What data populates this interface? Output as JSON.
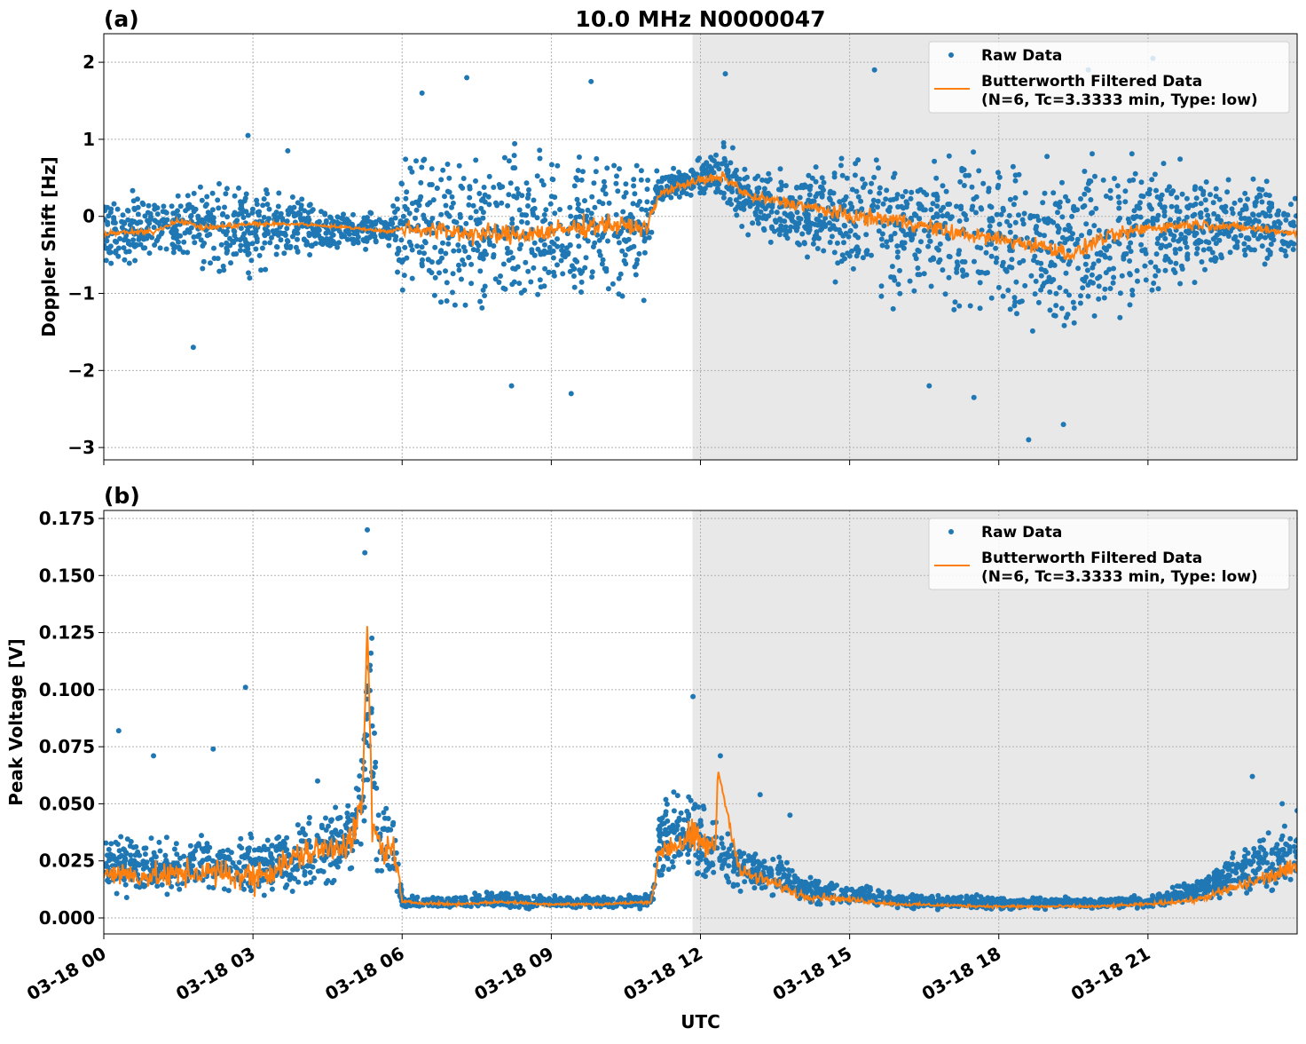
{
  "chart_data": [
    {
      "type": "scatter",
      "panel_label": "(a)",
      "title": "10.0 MHz N0000047",
      "xlabel": "",
      "ylabel": "Doppler Shift [Hz]",
      "xlim_hours": [
        0,
        24
      ],
      "ylim": [
        -3.16,
        2.37
      ],
      "yticks": [
        2,
        1,
        0,
        -1,
        -2,
        -3
      ],
      "ytick_labels": [
        "2",
        "1",
        "0",
        "−1",
        "−2",
        "−3"
      ],
      "shaded_region_hours": [
        11.84,
        24
      ],
      "grid": true,
      "legend": {
        "placement": "top-right",
        "entries": [
          "Raw Data",
          "Butterworth Filtered Data",
          "(N=6, Tc=3.3333 min, Type: low)"
        ]
      },
      "series": [
        {
          "name": "Raw Data",
          "color": "#1f77b4",
          "kind": "points",
          "t": [
            0,
            1,
            2,
            3,
            4,
            5,
            5.8,
            5.95,
            7,
            8,
            9,
            10,
            10.9,
            11.1,
            11.8,
            12.5,
            13,
            14,
            15,
            16,
            17,
            18,
            19,
            19.5,
            20,
            21,
            22,
            23,
            24
          ],
          "raw_lo": [
            -0.8,
            -0.7,
            -0.8,
            -0.9,
            -0.6,
            -0.5,
            -0.4,
            -1.3,
            -1.4,
            -1.5,
            -1.4,
            -1.3,
            -1.2,
            0.1,
            0.2,
            0.1,
            -0.3,
            -0.6,
            -1.0,
            -1.3,
            -1.4,
            -1.5,
            -1.7,
            -1.8,
            -1.5,
            -1.2,
            -1.0,
            -0.8,
            -0.7
          ],
          "raw_hi": [
            0.4,
            0.4,
            0.5,
            0.6,
            0.3,
            0.1,
            0.1,
            0.9,
            1.0,
            1.0,
            1.0,
            1.0,
            0.9,
            0.6,
            0.7,
            1.0,
            0.7,
            0.7,
            0.9,
            1.0,
            1.0,
            1.0,
            1.0,
            1.0,
            1.0,
            0.9,
            0.8,
            0.6,
            0.4
          ],
          "outliers": [
            [
              1.8,
              -1.7
            ],
            [
              2.9,
              1.05
            ],
            [
              3.7,
              0.85
            ],
            [
              6.4,
              1.6
            ],
            [
              7.3,
              1.8
            ],
            [
              8.2,
              -2.2
            ],
            [
              9.4,
              -2.3
            ],
            [
              9.8,
              1.75
            ],
            [
              12.5,
              1.85
            ],
            [
              15.5,
              1.9
            ],
            [
              16.6,
              -2.2
            ],
            [
              17.5,
              -2.35
            ],
            [
              18.6,
              -2.9
            ],
            [
              19.3,
              -2.7
            ],
            [
              21.1,
              2.05
            ],
            [
              19.8,
              1.9
            ]
          ]
        },
        {
          "name": "Butterworth Filtered Data",
          "color": "#ff7f0e",
          "kind": "line",
          "t": [
            0,
            1,
            1.5,
            2,
            3,
            4,
            5,
            5.8,
            6,
            7,
            8,
            9,
            10,
            10.9,
            11.2,
            11.8,
            12.5,
            13,
            14,
            15,
            16,
            17,
            18,
            19,
            19.5,
            20,
            21,
            22,
            23,
            24
          ],
          "values": [
            -0.22,
            -0.2,
            -0.05,
            -0.15,
            -0.1,
            -0.1,
            -0.15,
            -0.2,
            -0.15,
            -0.2,
            -0.25,
            -0.2,
            -0.1,
            -0.15,
            0.3,
            0.45,
            0.5,
            0.25,
            0.15,
            0.0,
            -0.05,
            -0.2,
            -0.3,
            -0.4,
            -0.5,
            -0.3,
            -0.15,
            -0.1,
            -0.15,
            -0.22
          ],
          "noise": [
            0.05,
            0.05,
            0.05,
            0.05,
            0.05,
            0.03,
            0.03,
            0.03,
            0.15,
            0.2,
            0.2,
            0.2,
            0.2,
            0.15,
            0.08,
            0.08,
            0.12,
            0.1,
            0.12,
            0.15,
            0.15,
            0.15,
            0.15,
            0.15,
            0.15,
            0.15,
            0.12,
            0.1,
            0.08,
            0.06
          ]
        }
      ]
    },
    {
      "type": "scatter",
      "panel_label": "(b)",
      "xlabel": "UTC",
      "ylabel": "Peak Voltage [V]",
      "xlim_hours": [
        0,
        24
      ],
      "ylim": [
        -0.007,
        0.1785
      ],
      "yticks": [
        0.0,
        0.025,
        0.05,
        0.075,
        0.1,
        0.125,
        0.15,
        0.175
      ],
      "ytick_labels": [
        "0.000",
        "0.025",
        "0.050",
        "0.075",
        "0.100",
        "0.125",
        "0.150",
        "0.175"
      ],
      "xticks_hours": [
        0,
        3,
        6,
        9,
        12,
        15,
        18,
        21
      ],
      "xtick_labels": [
        "03-18 00",
        "03-18 03",
        "03-18 06",
        "03-18 09",
        "03-18 12",
        "03-18 15",
        "03-18 18",
        "03-18 21"
      ],
      "shaded_region_hours": [
        11.84,
        24
      ],
      "grid": true,
      "legend": {
        "placement": "top-right",
        "entries": [
          "Raw Data",
          "Butterworth Filtered Data",
          "(N=6, Tc=3.3333 min, Type: low)"
        ]
      },
      "series": [
        {
          "name": "Raw Data",
          "color": "#1f77b4",
          "kind": "points",
          "t": [
            0,
            1,
            2,
            3,
            3.5,
            4,
            4.5,
            5,
            5.2,
            5.35,
            5.5,
            5.85,
            6,
            7,
            8,
            9,
            10,
            11,
            11.2,
            11.8,
            12.3,
            12.8,
            13.5,
            14,
            15,
            16,
            18,
            20,
            21,
            22,
            23,
            24
          ],
          "raw_lo": [
            0.008,
            0.008,
            0.008,
            0.007,
            0.008,
            0.01,
            0.012,
            0.014,
            0.02,
            0.06,
            0.015,
            0.012,
            0.004,
            0.004,
            0.004,
            0.004,
            0.004,
            0.004,
            0.015,
            0.015,
            0.012,
            0.01,
            0.008,
            0.006,
            0.005,
            0.004,
            0.003,
            0.004,
            0.004,
            0.006,
            0.008,
            0.01
          ],
          "raw_hi": [
            0.04,
            0.035,
            0.04,
            0.04,
            0.04,
            0.045,
            0.05,
            0.055,
            0.08,
            0.16,
            0.06,
            0.05,
            0.01,
            0.01,
            0.012,
            0.01,
            0.01,
            0.011,
            0.06,
            0.06,
            0.045,
            0.035,
            0.03,
            0.02,
            0.016,
            0.011,
            0.01,
            0.009,
            0.01,
            0.018,
            0.035,
            0.045
          ],
          "outliers": [
            [
              0.3,
              0.082
            ],
            [
              1.0,
              0.071
            ],
            [
              2.2,
              0.074
            ],
            [
              2.85,
              0.101
            ],
            [
              4.3,
              0.06
            ],
            [
              5.3,
              0.17
            ],
            [
              5.25,
              0.16
            ],
            [
              11.85,
              0.097
            ],
            [
              12.4,
              0.071
            ],
            [
              13.2,
              0.054
            ],
            [
              13.8,
              0.045
            ],
            [
              23.1,
              0.062
            ],
            [
              23.7,
              0.05
            ],
            [
              24,
              0.047
            ]
          ]
        },
        {
          "name": "Butterworth Filtered Data",
          "color": "#ff7f0e",
          "kind": "line",
          "t": [
            0,
            1,
            2,
            3,
            3.5,
            4,
            4.5,
            5,
            5.2,
            5.3,
            5.4,
            5.6,
            5.85,
            6,
            7,
            8,
            9,
            10,
            11,
            11.2,
            11.8,
            12.3,
            12.35,
            12.8,
            13.5,
            14,
            15,
            16,
            18,
            20,
            21,
            22,
            23,
            24
          ],
          "values": [
            0.02,
            0.018,
            0.02,
            0.018,
            0.022,
            0.028,
            0.03,
            0.035,
            0.05,
            0.13,
            0.04,
            0.03,
            0.03,
            0.007,
            0.006,
            0.007,
            0.006,
            0.006,
            0.007,
            0.03,
            0.035,
            0.03,
            0.065,
            0.02,
            0.015,
            0.01,
            0.008,
            0.006,
            0.005,
            0.005,
            0.006,
            0.008,
            0.015,
            0.022
          ],
          "noise": [
            0.008,
            0.008,
            0.009,
            0.01,
            0.01,
            0.01,
            0.01,
            0.012,
            0.01,
            0.0,
            0.01,
            0.01,
            0.01,
            0.001,
            0.001,
            0.001,
            0.001,
            0.001,
            0.001,
            0.01,
            0.012,
            0.008,
            0.0,
            0.006,
            0.004,
            0.003,
            0.002,
            0.001,
            0.001,
            0.001,
            0.001,
            0.002,
            0.005,
            0.006
          ]
        }
      ]
    }
  ]
}
